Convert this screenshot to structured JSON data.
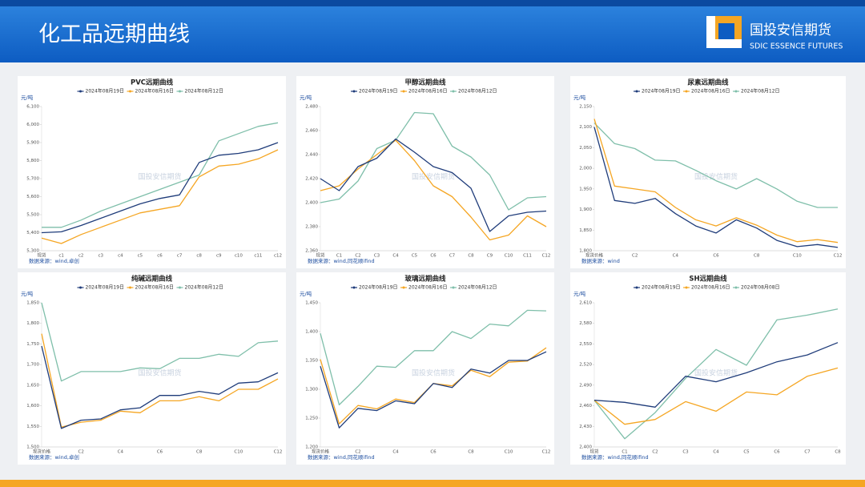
{
  "header": {
    "title": "化工品远期曲线",
    "logo_cn": "国投安信期货",
    "logo_en": "SDIC ESSENCE FUTURES",
    "watermark": "国投安信期货"
  },
  "chart_data": [
    {
      "type": "line",
      "title": "PVC远期曲线",
      "y_label": "元/吨",
      "source": "数据来源：wind,卓创",
      "categories": [
        "现货",
        "c1",
        "c2",
        "c3",
        "c4",
        "c5",
        "c6",
        "c7",
        "c8",
        "c9",
        "c10",
        "c11",
        "c12"
      ],
      "series": [
        {
          "name": "2024年08月19日",
          "color": "#1f3c7a",
          "values": [
            5400,
            5405,
            5440,
            5480,
            5520,
            5560,
            5590,
            5610,
            5790,
            5830,
            5840,
            5860,
            5900
          ]
        },
        {
          "name": "2024年08月16日",
          "color": "#f5a623",
          "values": [
            5370,
            5340,
            5390,
            5430,
            5470,
            5510,
            5530,
            5550,
            5710,
            5770,
            5780,
            5810,
            5860
          ]
        },
        {
          "name": "2024年08月12日",
          "color": "#7fbfaa",
          "values": [
            5430,
            5430,
            5470,
            5520,
            5560,
            5600,
            5640,
            5680,
            5720,
            5910,
            5950,
            5990,
            6010
          ]
        }
      ],
      "ylim": [
        5300,
        6100
      ],
      "yticks": [
        {
          "value": 5300,
          "label": "5,300"
        },
        {
          "value": 5400,
          "label": "5,400"
        },
        {
          "value": 5500,
          "label": "5,500"
        },
        {
          "value": 5600,
          "label": "5,600"
        },
        {
          "value": 5700,
          "label": "5,700"
        },
        {
          "value": 5800,
          "label": "5,800"
        },
        {
          "value": 5900,
          "label": "5,900"
        },
        {
          "value": 6000,
          "label": "6,000"
        },
        {
          "value": 6100,
          "label": "6,100"
        }
      ]
    },
    {
      "type": "line",
      "title": "甲醇远期曲线",
      "y_label": "元/吨",
      "source": "数据来源：wind,同花顺ifind",
      "categories": [
        "现货",
        "C1",
        "C2",
        "C3",
        "C4",
        "C5",
        "C6",
        "C7",
        "C8",
        "C9",
        "C10",
        "C11",
        "C12"
      ],
      "series": [
        {
          "name": "2024年08月19日",
          "color": "#1f3c7a",
          "values": [
            2420,
            2410,
            2430,
            2437,
            2453,
            2442,
            2430,
            2425,
            2412,
            2376,
            2389,
            2392,
            2393
          ]
        },
        {
          "name": "2024年08月16日",
          "color": "#f5a623",
          "values": [
            2410,
            2414,
            2428,
            2440,
            2452,
            2435,
            2414,
            2405,
            2388,
            2369,
            2373,
            2389,
            2380
          ]
        },
        {
          "name": "2024年08月12日",
          "color": "#7fbfaa",
          "values": [
            2400,
            2403,
            2418,
            2445,
            2452,
            2475,
            2474,
            2447,
            2438,
            2423,
            2394,
            2404,
            2405
          ]
        }
      ],
      "ylim": [
        2360,
        2480
      ],
      "yticks": [
        {
          "value": 2360,
          "label": "2,360"
        },
        {
          "value": 2380,
          "label": "2,380"
        },
        {
          "value": 2400,
          "label": "2,400"
        },
        {
          "value": 2420,
          "label": "2,420"
        },
        {
          "value": 2440,
          "label": "2,440"
        },
        {
          "value": 2460,
          "label": "2,460"
        },
        {
          "value": 2480,
          "label": "2,480"
        }
      ]
    },
    {
      "type": "line",
      "title": "尿素远期曲线",
      "y_label": "元/吨",
      "source": "数据来源：wind",
      "categories": [
        "现货价格",
        null,
        "C2",
        null,
        "C4",
        null,
        "C6",
        null,
        "C8",
        null,
        "C10",
        null,
        "C12"
      ],
      "series": [
        {
          "name": "2024年08月19日",
          "color": "#1f3c7a",
          "values": [
            2100,
            1922,
            1915,
            1927,
            1890,
            1860,
            1843,
            1875,
            1855,
            1825,
            1810,
            1815,
            1808
          ]
        },
        {
          "name": "2024年08月16日",
          "color": "#f5a623",
          "values": [
            2120,
            1957,
            1950,
            1943,
            1905,
            1875,
            1860,
            1880,
            1862,
            1838,
            1822,
            1827,
            1820
          ]
        },
        {
          "name": "2024年08月12日",
          "color": "#7fbfaa",
          "values": [
            2110,
            2060,
            2048,
            2020,
            2018,
            1995,
            1970,
            1950,
            1975,
            1950,
            1920,
            1905,
            1905
          ]
        }
      ],
      "ylim": [
        1800,
        2150
      ],
      "yticks": [
        {
          "value": 1800,
          "label": "1,800"
        },
        {
          "value": 1850,
          "label": "1,850"
        },
        {
          "value": 1900,
          "label": "1,900"
        },
        {
          "value": 1950,
          "label": "1,950"
        },
        {
          "value": 2000,
          "label": "2,000"
        },
        {
          "value": 2050,
          "label": "2,050"
        },
        {
          "value": 2100,
          "label": "2,100"
        },
        {
          "value": 2150,
          "label": "2,150"
        }
      ]
    },
    {
      "type": "line",
      "title": "纯碱远期曲线",
      "y_label": "元/吨",
      "source": "数据来源：wind,卓创",
      "categories": [
        "现货价格",
        null,
        "C2",
        null,
        "C4",
        null,
        "C6",
        null,
        "C8",
        null,
        "C10",
        null,
        "C12"
      ],
      "series": [
        {
          "name": "2024年08月19日",
          "color": "#1f3c7a",
          "values": [
            1745,
            1545,
            1565,
            1568,
            1590,
            1595,
            1625,
            1625,
            1635,
            1628,
            1655,
            1658,
            1680
          ]
        },
        {
          "name": "2024年08月16日",
          "color": "#f5a623",
          "values": [
            1775,
            1548,
            1560,
            1565,
            1587,
            1583,
            1612,
            1612,
            1622,
            1612,
            1640,
            1640,
            1665
          ]
        },
        {
          "name": "2024年08月12日",
          "color": "#7fbfaa",
          "values": [
            1850,
            1660,
            1683,
            1683,
            1683,
            1692,
            1690,
            1715,
            1715,
            1725,
            1720,
            1753,
            1757
          ]
        }
      ],
      "ylim": [
        1500,
        1850
      ],
      "yticks": [
        {
          "value": 1500,
          "label": "1,500"
        },
        {
          "value": 1550,
          "label": "1,550"
        },
        {
          "value": 1600,
          "label": "1,600"
        },
        {
          "value": 1650,
          "label": "1,650"
        },
        {
          "value": 1700,
          "label": "1,700"
        },
        {
          "value": 1750,
          "label": "1,750"
        },
        {
          "value": 1800,
          "label": "1,800"
        },
        {
          "value": 1850,
          "label": "1,850"
        }
      ]
    },
    {
      "type": "line",
      "title": "玻璃远期曲线",
      "y_label": "元/吨",
      "source": "数据来源：wind,同花顺ifind",
      "categories": [
        "现货价格",
        null,
        "C2",
        null,
        "C4",
        null,
        "C6",
        null,
        "C8",
        null,
        "C10",
        null,
        "C12"
      ],
      "series": [
        {
          "name": "2024年08月19日",
          "color": "#1f3c7a",
          "values": [
            1340,
            1233,
            1267,
            1263,
            1280,
            1275,
            1310,
            1303,
            1335,
            1328,
            1350,
            1350,
            1365
          ]
        },
        {
          "name": "2024年08月16日",
          "color": "#f5a623",
          "values": [
            1352,
            1240,
            1272,
            1266,
            1283,
            1277,
            1310,
            1306,
            1333,
            1322,
            1347,
            1349,
            1372
          ]
        },
        {
          "name": "2024年08月12日",
          "color": "#7fbfaa",
          "values": [
            1397,
            1273,
            1305,
            1340,
            1338,
            1367,
            1367,
            1400,
            1388,
            1413,
            1410,
            1437,
            1436
          ]
        }
      ],
      "ylim": [
        1200,
        1450
      ],
      "yticks": [
        {
          "value": 1200,
          "label": "1,200"
        },
        {
          "value": 1250,
          "label": "1,250"
        },
        {
          "value": 1300,
          "label": "1,300"
        },
        {
          "value": 1350,
          "label": "1,350"
        },
        {
          "value": 1400,
          "label": "1,400"
        },
        {
          "value": 1450,
          "label": "1,450"
        }
      ]
    },
    {
      "type": "line",
      "title": "SH远期曲线",
      "y_label": "元/吨",
      "source": "数据来源：wind,同花顺ifind",
      "categories": [
        "现货",
        "C1",
        "C2",
        "C3",
        "C4",
        "C5",
        "C6",
        "C7",
        "C8"
      ],
      "series": [
        {
          "name": "2024年08月19日",
          "color": "#1f3c7a",
          "values": [
            2468,
            2465,
            2458,
            2503,
            2495,
            2508,
            2524,
            2534,
            2552
          ]
        },
        {
          "name": "2024年08月16日",
          "color": "#f5a623",
          "values": [
            2468,
            2433,
            2440,
            2466,
            2452,
            2480,
            2476,
            2503,
            2515
          ]
        },
        {
          "name": "2024年08月08日",
          "color": "#7fbfaa",
          "values": [
            2468,
            2412,
            2450,
            2500,
            2542,
            2519,
            2585,
            2592,
            2601
          ]
        }
      ],
      "ylim": [
        2400,
        2610
      ],
      "yticks": [
        {
          "value": 2400,
          "label": "2,400"
        },
        {
          "value": 2430,
          "label": "2,430"
        },
        {
          "value": 2460,
          "label": "2,460"
        },
        {
          "value": 2490,
          "label": "2,490"
        },
        {
          "value": 2520,
          "label": "2,520"
        },
        {
          "value": 2550,
          "label": "2,550"
        },
        {
          "value": 2580,
          "label": "2,580"
        },
        {
          "value": 2610,
          "label": "2,610"
        }
      ]
    }
  ]
}
